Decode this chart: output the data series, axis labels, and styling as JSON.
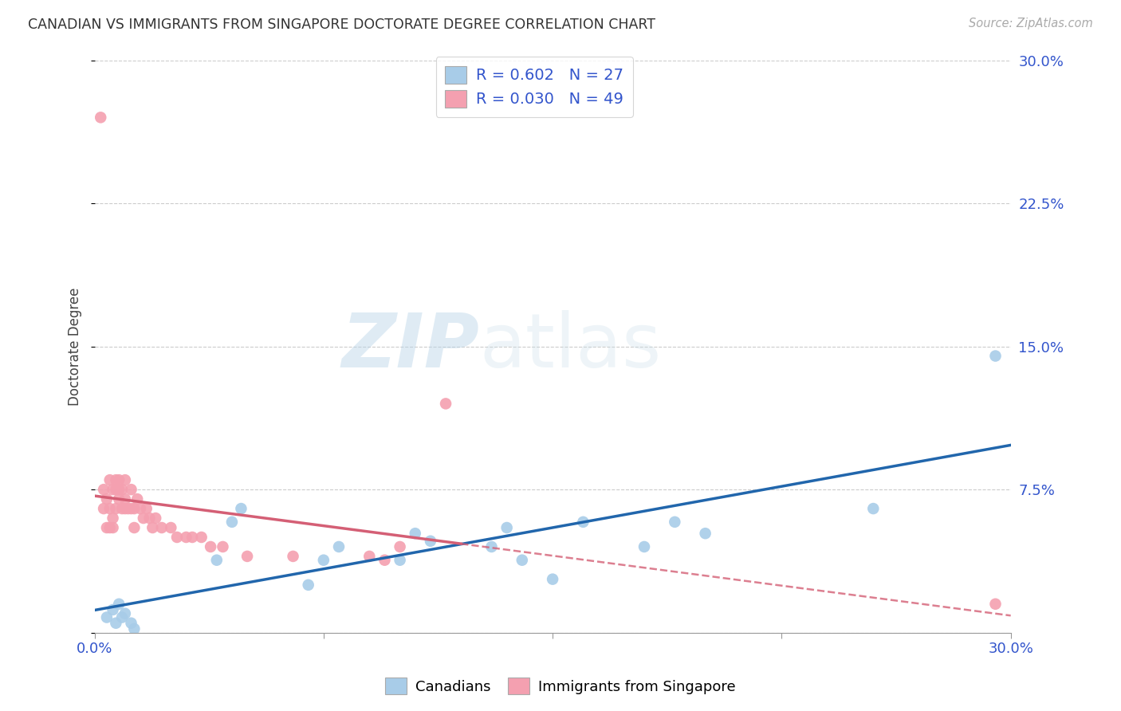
{
  "title": "CANADIAN VS IMMIGRANTS FROM SINGAPORE DOCTORATE DEGREE CORRELATION CHART",
  "source": "Source: ZipAtlas.com",
  "ylabel": "Doctorate Degree",
  "xlabel": "",
  "xlim": [
    0.0,
    0.3
  ],
  "ylim": [
    0.0,
    0.3
  ],
  "yticks": [
    0.0,
    0.075,
    0.15,
    0.225,
    0.3
  ],
  "ytick_labels": [
    "",
    "7.5%",
    "15.0%",
    "22.5%",
    "30.0%"
  ],
  "xticks": [
    0.0,
    0.075,
    0.15,
    0.225,
    0.3
  ],
  "xtick_labels": [
    "0.0%",
    "",
    "",
    "",
    "30.0%"
  ],
  "canadian_R": 0.602,
  "canadian_N": 27,
  "singapore_R": 0.03,
  "singapore_N": 49,
  "blue_scatter_color": "#a8cce8",
  "pink_scatter_color": "#f4a0b0",
  "blue_line_color": "#2166ac",
  "pink_line_color": "#d45f75",
  "canadian_x": [
    0.004,
    0.006,
    0.007,
    0.008,
    0.009,
    0.01,
    0.012,
    0.013,
    0.04,
    0.045,
    0.048,
    0.07,
    0.075,
    0.08,
    0.1,
    0.105,
    0.11,
    0.13,
    0.135,
    0.14,
    0.15,
    0.16,
    0.18,
    0.19,
    0.2,
    0.255,
    0.295
  ],
  "canadian_y": [
    0.008,
    0.012,
    0.005,
    0.015,
    0.008,
    0.01,
    0.005,
    0.002,
    0.038,
    0.058,
    0.065,
    0.025,
    0.038,
    0.045,
    0.038,
    0.052,
    0.048,
    0.045,
    0.055,
    0.038,
    0.028,
    0.058,
    0.045,
    0.058,
    0.052,
    0.065,
    0.145
  ],
  "singapore_x": [
    0.002,
    0.003,
    0.003,
    0.004,
    0.004,
    0.005,
    0.005,
    0.005,
    0.006,
    0.006,
    0.006,
    0.007,
    0.007,
    0.007,
    0.008,
    0.008,
    0.008,
    0.009,
    0.009,
    0.01,
    0.01,
    0.01,
    0.011,
    0.012,
    0.012,
    0.013,
    0.013,
    0.014,
    0.015,
    0.016,
    0.017,
    0.018,
    0.019,
    0.02,
    0.022,
    0.025,
    0.027,
    0.03,
    0.032,
    0.035,
    0.038,
    0.042,
    0.05,
    0.065,
    0.09,
    0.095,
    0.1,
    0.115,
    0.295
  ],
  "singapore_y": [
    0.27,
    0.065,
    0.075,
    0.055,
    0.07,
    0.055,
    0.065,
    0.08,
    0.055,
    0.06,
    0.075,
    0.065,
    0.075,
    0.08,
    0.07,
    0.075,
    0.08,
    0.065,
    0.075,
    0.065,
    0.07,
    0.08,
    0.065,
    0.065,
    0.075,
    0.055,
    0.065,
    0.07,
    0.065,
    0.06,
    0.065,
    0.06,
    0.055,
    0.06,
    0.055,
    0.055,
    0.05,
    0.05,
    0.05,
    0.05,
    0.045,
    0.045,
    0.04,
    0.04,
    0.04,
    0.038,
    0.045,
    0.12,
    0.015
  ],
  "watermark_zip": "ZIP",
  "watermark_atlas": "atlas",
  "background_color": "#ffffff",
  "grid_color": "#cccccc"
}
